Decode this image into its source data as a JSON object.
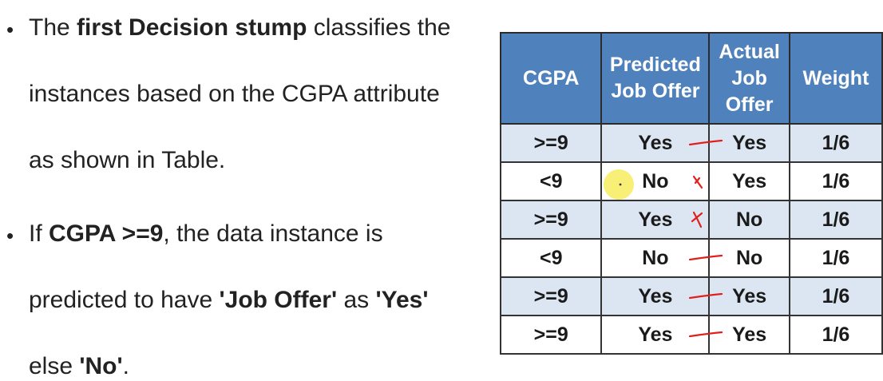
{
  "bullets": [
    {
      "lines": [
        [
          {
            "t": "The ",
            "b": false
          },
          {
            "t": "first Decision stump",
            "b": true
          },
          {
            "t": " classifies the",
            "b": false
          }
        ],
        [
          {
            "t": "instances based on the CGPA attribute",
            "b": false
          }
        ],
        [
          {
            "t": "as shown in Table.",
            "b": false
          }
        ]
      ]
    },
    {
      "lines": [
        [
          {
            "t": "If ",
            "b": false
          },
          {
            "t": "CGPA >=9",
            "b": true
          },
          {
            "t": ", the data instance is",
            "b": false
          }
        ],
        [
          {
            "t": "predicted to have ",
            "b": false
          },
          {
            "t": "'Job Offer'",
            "b": true
          },
          {
            "t": " as ",
            "b": false
          },
          {
            "t": "'Yes'",
            "b": true
          }
        ],
        [
          {
            "t": "else ",
            "b": false
          },
          {
            "t": "'No'",
            "b": true
          },
          {
            "t": ".",
            "b": false
          }
        ]
      ]
    }
  ],
  "table": {
    "headers": [
      "CGPA",
      "Predicted\nJob Offer",
      "Actual\nJob\nOffer",
      "Weight"
    ],
    "rows": [
      [
        ">=9",
        "Yes",
        "Yes",
        "1/6"
      ],
      [
        "<9",
        "No",
        "Yes",
        "1/6"
      ],
      [
        ">=9",
        "Yes",
        "No",
        "1/6"
      ],
      [
        "<9",
        "No",
        "No",
        "1/6"
      ],
      [
        ">=9",
        "Yes",
        "Yes",
        "1/6"
      ],
      [
        ">=9",
        "Yes",
        "Yes",
        "1/6"
      ]
    ]
  },
  "annotations": {
    "marks": [
      "dash",
      "cross",
      "cross",
      "dash",
      "dash",
      "dash"
    ],
    "ink_color": "#e0201c",
    "highlight_color": "#f5e94a",
    "header_color": "#4f81bd",
    "stripe_color": "#dce6f2"
  }
}
